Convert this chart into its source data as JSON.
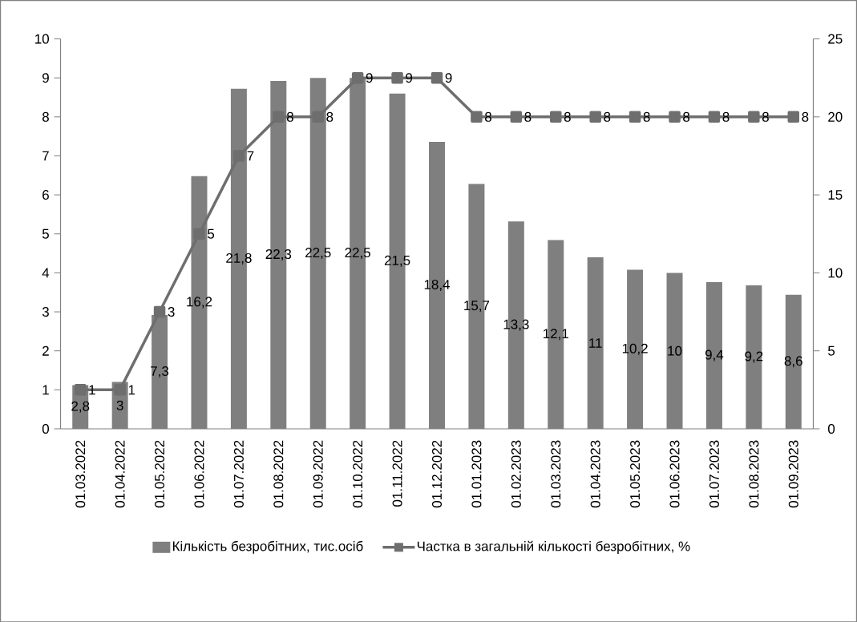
{
  "chart_data": {
    "type": "bar",
    "categories": [
      "01.03.2022",
      "01.04.2022",
      "01.05.2022",
      "01.06.2022",
      "01.07.2022",
      "01.08.2022",
      "01.09.2022",
      "01.10.2022",
      "01.11.2022",
      "01.12.2022",
      "01.01.2023",
      "01.02.2023",
      "01.03.2023",
      "01.04.2023",
      "01.05.2023",
      "01.06.2023",
      "01.07.2023",
      "01.08.2023",
      "01.09.2023"
    ],
    "series": [
      {
        "name": "Кількість безробітних, тис.осіб",
        "axis": "y2",
        "color": "#7f7f7f",
        "values": [
          2.8,
          3,
          7.3,
          16.2,
          21.8,
          22.3,
          22.5,
          22.5,
          21.5,
          18.4,
          15.7,
          13.3,
          12.1,
          11,
          10.2,
          10,
          9.4,
          9.2,
          8.6
        ],
        "value_labels": [
          "2,8",
          "3",
          "7,3",
          "16,2",
          "21,8",
          "22,3",
          "22,5",
          "22,5",
          "21,5",
          "18,4",
          "15,7",
          "13,3",
          "12,1",
          "11",
          "10,2",
          "10",
          "9,4",
          "9,2",
          "8,6"
        ]
      },
      {
        "name": "Частка в загальній кількості безробітних, %",
        "type": "line",
        "axis": "y",
        "color": "#6e6e6e",
        "marker": "square",
        "values": [
          1,
          1,
          3,
          5,
          7,
          8,
          8,
          9,
          9,
          9,
          8,
          8,
          8,
          8,
          8,
          8,
          8,
          8,
          8
        ],
        "value_labels": [
          "1",
          "1",
          "3",
          "5",
          "7",
          "8",
          "8",
          "9",
          "9",
          "9",
          "8",
          "8",
          "8",
          "8",
          "8",
          "8",
          "8",
          "8",
          "8"
        ]
      }
    ],
    "ylim": [
      0,
      10
    ],
    "yticks": [
      0,
      1,
      2,
      3,
      4,
      5,
      6,
      7,
      8,
      9,
      10
    ],
    "y2lim": [
      0,
      25
    ],
    "y2ticks": [
      0,
      5,
      10,
      15,
      20,
      25
    ],
    "grid": false,
    "legend": "bottom"
  }
}
